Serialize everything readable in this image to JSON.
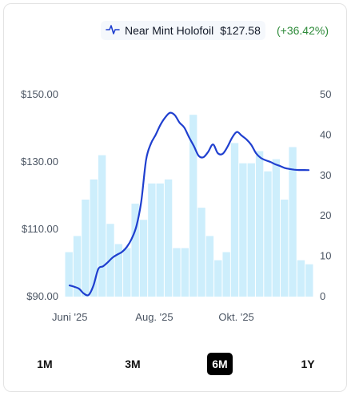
{
  "legend": {
    "icon": "pulse-line-icon",
    "name": "Near Mint Holofoil",
    "price": "$127.58",
    "change": "(+36.42%)"
  },
  "colors": {
    "line": "#1f3fcf",
    "bar": "#cdeefc",
    "change": "#2e8b3a",
    "active_tab": "#000000"
  },
  "chart_data": {
    "type": "line",
    "left_axis": {
      "ticks": [
        "$90.00",
        "$110.00",
        "$130.00",
        "$150.00"
      ],
      "range": [
        90,
        150
      ]
    },
    "right_axis": {
      "ticks": [
        "0",
        "10",
        "20",
        "30",
        "40",
        "50"
      ],
      "range": [
        0,
        50
      ]
    },
    "x_ticks": [
      "Juni '25",
      "Aug. '25",
      "Okt. '25"
    ],
    "series": [
      {
        "type": "line",
        "x": [
          0,
          2,
          4,
          6,
          8,
          10,
          12,
          14,
          16,
          18,
          20,
          22,
          24,
          26,
          28,
          30,
          32,
          34,
          36,
          38,
          40,
          42,
          44,
          46,
          48,
          50,
          52,
          54,
          56,
          58,
          60,
          62,
          64,
          66,
          68,
          70,
          72,
          74,
          76,
          78,
          80,
          82,
          84,
          86,
          88,
          90,
          92,
          94,
          96,
          98,
          100
        ],
        "values": [
          93.3,
          92.9,
          92.3,
          90.9,
          90.5,
          93.3,
          98.2,
          99.0,
          100.2,
          101.6,
          102.5,
          103.3,
          104.8,
          107.2,
          111.0,
          118.3,
          130.6,
          135.4,
          138.0,
          141.0,
          143.2,
          144.6,
          143.9,
          141.7,
          140.2,
          137.3,
          134.7,
          131.8,
          131.4,
          133.0,
          135.2,
          132.6,
          132.4,
          134.4,
          137.2,
          138.9,
          137.8,
          136.7,
          135.1,
          132.6,
          131.2,
          130.5,
          130.0,
          129.3,
          128.8,
          128.2,
          127.9,
          127.7,
          127.6,
          127.6,
          127.58
        ]
      },
      {
        "type": "bar",
        "values": [
          11,
          15,
          24,
          29,
          35,
          18,
          13,
          12,
          23,
          19,
          28,
          28,
          29,
          12,
          12,
          45,
          22,
          15,
          9,
          11,
          38,
          33,
          33,
          36,
          31,
          34,
          24,
          37,
          9,
          8
        ]
      }
    ]
  },
  "tabs": [
    {
      "label": "1M",
      "active": false
    },
    {
      "label": "3M",
      "active": false
    },
    {
      "label": "6M",
      "active": true
    },
    {
      "label": "1Y",
      "active": false
    }
  ]
}
